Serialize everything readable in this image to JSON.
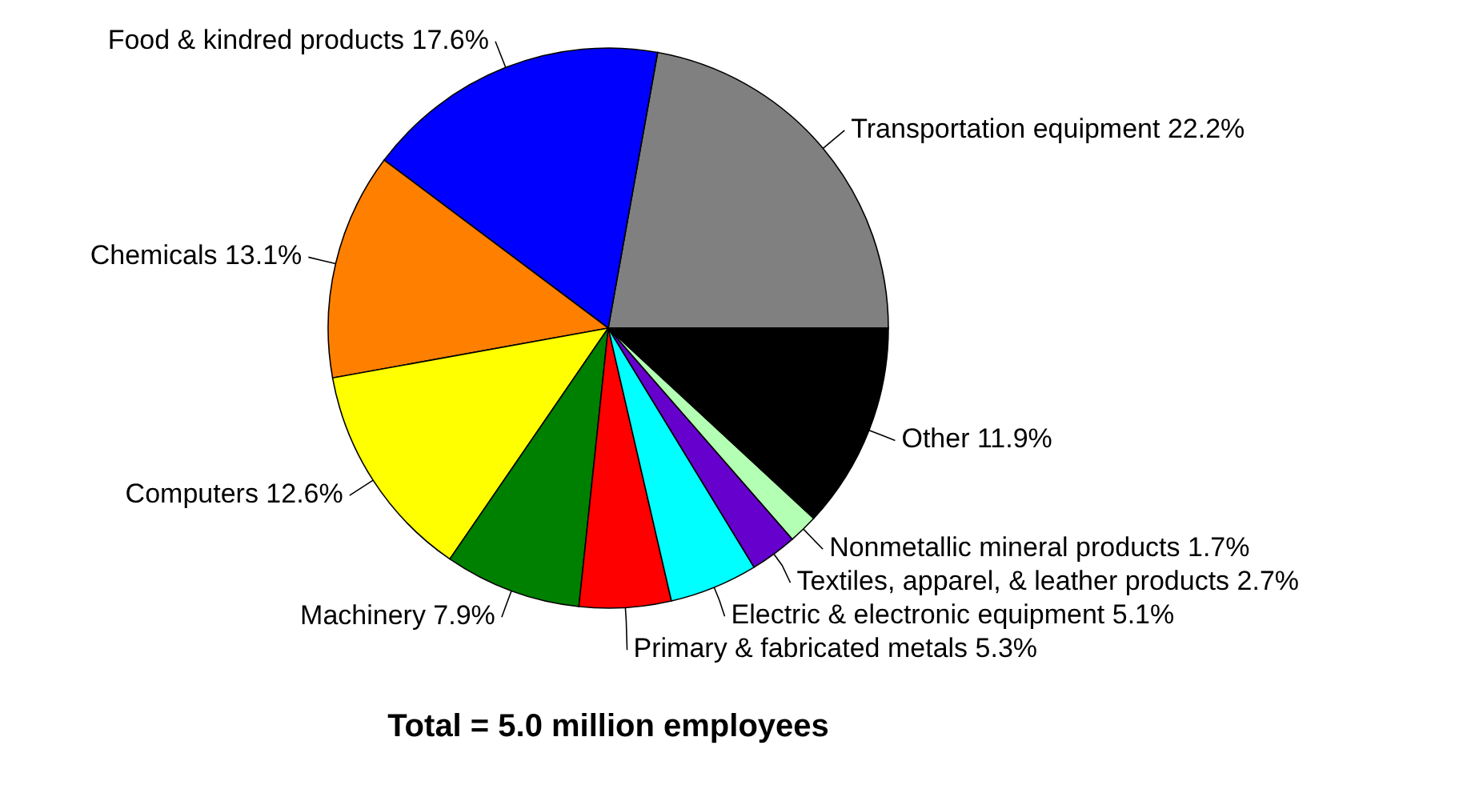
{
  "chart_data": {
    "type": "pie",
    "title": "Total = 5.0 million employees",
    "categories": [
      "Transportation equipment",
      "Food & kindred products",
      "Chemicals",
      "Computers",
      "Machinery",
      "Primary & fabricated metals",
      "Electric & electronic equipment",
      "Textiles, apparel, & leather products",
      "Nonmetallic mineral products",
      "Other"
    ],
    "values": [
      22.2,
      17.6,
      13.1,
      12.6,
      7.9,
      5.3,
      5.1,
      2.7,
      1.7,
      11.9
    ],
    "value_labels": [
      "22.2%",
      "17.6%",
      "13.1%",
      "12.6%",
      "7.9%",
      "5.3%",
      "5.1%",
      "2.7%",
      "1.7%",
      "11.9%"
    ],
    "colors": [
      "#808080",
      "#0000ff",
      "#ff8000",
      "#ffff00",
      "#008000",
      "#ff0000",
      "#00ffff",
      "#6600cc",
      "#b3ffb3",
      "#000000"
    ],
    "legend": false
  }
}
